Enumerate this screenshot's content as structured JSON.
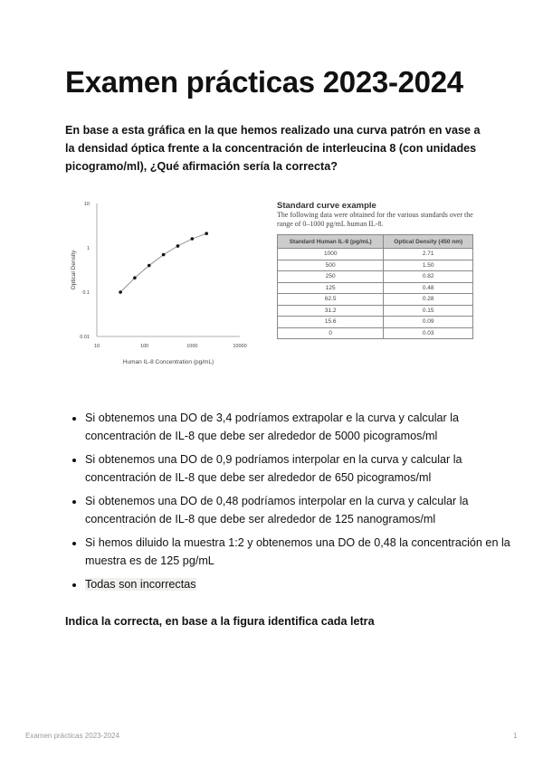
{
  "title": "Examen prácticas 2023-2024",
  "question": "En base a esta gráfica en la que hemos realizado una curva patrón en vase a la densidad óptica frente a la concentración de interleucina 8 (con unidades picogramo/ml), ¿Qué afirmación sería la correcta?",
  "chart_data": {
    "type": "line",
    "xlabel": "Human IL-8 Concentration (pg/mL)",
    "ylabel": "Optical Density",
    "xscale": "log",
    "yscale": "log",
    "xlim": [
      10,
      10000
    ],
    "ylim": [
      0.01,
      10
    ],
    "xticks": [
      "10",
      "100",
      "1000",
      "10000"
    ],
    "yticks": [
      "0.01",
      "0.1",
      "1",
      "10"
    ],
    "x": [
      31.25,
      62.5,
      125,
      250,
      500,
      1000,
      2000
    ],
    "y": [
      0.1,
      0.21,
      0.4,
      0.7,
      1.1,
      1.6,
      2.1
    ],
    "grid": false
  },
  "table": {
    "title": "Standard curve example",
    "description": "The following data were obtained for the various standards over the range of 0–1000 pg/mL human IL-8.",
    "headers": [
      "Standard Human IL-8 (pg/mL)",
      "Optical Density (450 nm)"
    ],
    "rows": [
      [
        "1000",
        "2.71"
      ],
      [
        "500",
        "1.50"
      ],
      [
        "250",
        "0.82"
      ],
      [
        "125",
        "0.48"
      ],
      [
        "62.5",
        "0.28"
      ],
      [
        "31.2",
        "0.15"
      ],
      [
        "15.6",
        "0.09"
      ],
      [
        "0",
        "0.03"
      ]
    ]
  },
  "options": [
    "Si obtenemos una DO de 3,4 podríamos extrapolar e la curva y calcular la concentración de IL-8 que debe ser alrededor de 5000 picogramos/ml",
    "Si obtenemos una DO de 0,9 podríamos interpolar en la curva y calcular la concentración de IL-8 que debe ser alrededor de 650 picogramos/ml",
    "Si obtenemos una DO de 0,48 podríamos interpolar en la curva y calcular la concentración de IL-8 que debe ser alrededor de 125 nanogramos/ml",
    "Si hemos diluido la muestra 1:2 y obtenemos una DO de 0,48 la concentración en la muestra es de 125 pg/mL",
    "Todas son incorrectas"
  ],
  "question2": "Indica la correcta, en base a la figura identifica cada letra",
  "footer": {
    "text": "Examen prácticas 2023-2024",
    "page": "1"
  }
}
